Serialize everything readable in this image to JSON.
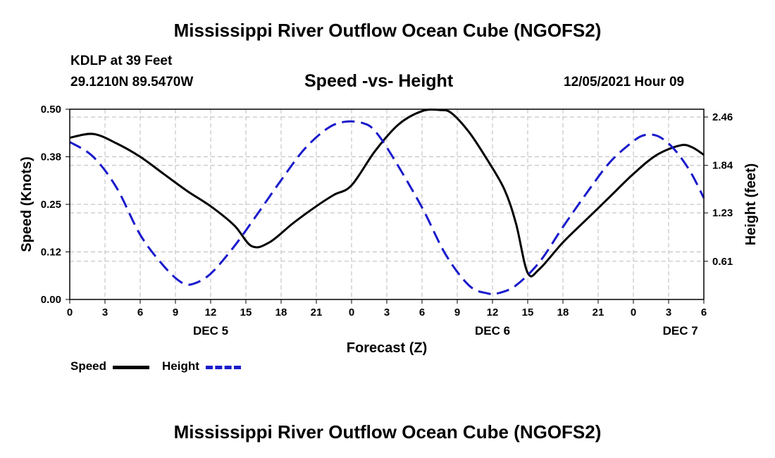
{
  "page": {
    "title": "Mississippi River Outflow Ocean Cube (NGOFS2)",
    "footer_title": "Mississippi River Outflow Ocean Cube (NGOFS2)",
    "station": "KDLP at 39 Feet",
    "coordinates": "29.1210N  89.5470W",
    "subtitle": "Speed -vs- Height",
    "datetime": "12/05/2021 Hour 09"
  },
  "legend": {
    "speed_label": "Speed",
    "height_label": "Height"
  },
  "colors": {
    "speed": "#000000",
    "height": "#1a1acc",
    "grid": "#bbbbbb"
  },
  "chart_data": {
    "type": "line",
    "title": "Speed -vs- Height",
    "xlabel": "Forecast (Z)",
    "ylabel": "Speed (Knots)",
    "y2label": "Height (feet)",
    "xlim": [
      0,
      54
    ],
    "ylim": [
      0,
      0.5
    ],
    "y2lim": [
      0.12,
      2.56
    ],
    "grid": true,
    "x_ticks": [
      0,
      3,
      6,
      9,
      12,
      15,
      18,
      21,
      24,
      27,
      30,
      33,
      36,
      39,
      42,
      45,
      48,
      51,
      54
    ],
    "x_tick_labels": [
      "0",
      "3",
      "6",
      "9",
      "12",
      "15",
      "18",
      "21",
      "0",
      "3",
      "6",
      "9",
      "12",
      "15",
      "18",
      "21",
      "0",
      "3",
      "6"
    ],
    "y_ticks": [
      0,
      0.125,
      0.25,
      0.375,
      0.5
    ],
    "y_tick_labels": [
      "0.00",
      "0.12",
      "0.25",
      "0.38",
      "0.50"
    ],
    "y2_ticks": [
      0.61,
      1.23,
      1.84,
      2.46
    ],
    "y2_tick_labels": [
      "0.61",
      "1.23",
      "1.84",
      "2.46"
    ],
    "day_labels": [
      {
        "x": 12,
        "label": "DEC 5"
      },
      {
        "x": 36,
        "label": "DEC 6"
      },
      {
        "x": 52,
        "label": "DEC 7"
      }
    ],
    "series": [
      {
        "name": "Speed",
        "axis": "left",
        "style": "solid",
        "x": [
          0,
          2,
          4,
          6,
          8,
          10,
          12,
          14,
          15.5,
          17,
          19,
          21,
          22.5,
          24,
          26,
          28,
          30,
          31.5,
          32.5,
          34,
          35.5,
          37,
          38,
          39,
          40,
          42,
          44,
          46,
          48,
          50,
          52,
          53,
          54
        ],
        "values": [
          0.425,
          0.435,
          0.41,
          0.375,
          0.33,
          0.285,
          0.245,
          0.195,
          0.14,
          0.15,
          0.2,
          0.245,
          0.275,
          0.3,
          0.39,
          0.46,
          0.495,
          0.498,
          0.49,
          0.44,
          0.37,
          0.29,
          0.2,
          0.07,
          0.08,
          0.15,
          0.21,
          0.27,
          0.33,
          0.38,
          0.405,
          0.4,
          0.38
        ]
      },
      {
        "name": "Height",
        "axis": "right",
        "style": "dashed",
        "x": [
          0,
          2,
          4,
          6,
          8,
          9.5,
          10.5,
          12,
          14,
          16,
          18,
          20,
          22,
          23.5,
          25,
          26,
          27.5,
          30,
          32,
          34,
          35.5,
          36.5,
          38,
          40,
          42,
          44,
          46,
          48,
          49,
          50,
          51,
          52,
          53,
          54
        ],
        "values": [
          2.14,
          1.95,
          1.55,
          0.95,
          0.55,
          0.34,
          0.32,
          0.45,
          0.8,
          1.22,
          1.65,
          2.05,
          2.32,
          2.4,
          2.38,
          2.28,
          1.95,
          1.3,
          0.7,
          0.3,
          0.2,
          0.2,
          0.3,
          0.6,
          1.05,
          1.48,
          1.88,
          2.15,
          2.23,
          2.22,
          2.12,
          1.95,
          1.72,
          1.42
        ]
      }
    ]
  }
}
